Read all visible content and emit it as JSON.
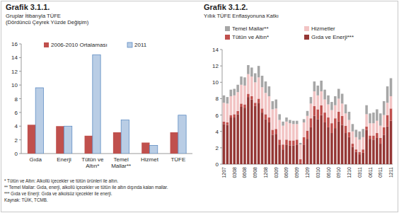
{
  "chart_data": [
    {
      "type": "bar",
      "title": "Grafik 3.1.1.",
      "subtitle": [
        "Gruplar İtibarıyla TÜFE",
        "(Dördüncü Çeyrek Yüzde Değişim)"
      ],
      "categories": [
        "Gıda",
        "Enerji",
        "Tütün ve Altın*",
        "Temel Mallar**",
        "Hizmet",
        "TÜFE"
      ],
      "series": [
        {
          "name": "2006-2010 Ortalaması",
          "color": "#c0504d",
          "values": [
            4.2,
            4.0,
            2.6,
            3.1,
            1.6,
            3.1
          ]
        },
        {
          "name": "2011",
          "color": "#b9cde5",
          "values": [
            9.6,
            4.0,
            14.4,
            4.9,
            1.2,
            5.6
          ]
        }
      ],
      "ylim": [
        0,
        16
      ],
      "yticks": [
        0,
        2,
        4,
        6,
        8,
        10,
        12,
        14,
        16
      ],
      "grid": false,
      "legend": "top",
      "stacked": false
    },
    {
      "type": "bar",
      "title": "Grafik 3.1.2.",
      "subtitle": [
        "Yıllık TÜFE Enflasyonuna Katkı"
      ],
      "categories": [
        "1207",
        null,
        null,
        "0308",
        null,
        null,
        "0608",
        null,
        null,
        "0908",
        null,
        null,
        "1208",
        null,
        null,
        "0309",
        null,
        null,
        "0609",
        null,
        null,
        "0909",
        null,
        null,
        "1209",
        null,
        null,
        "0310",
        null,
        null,
        "0610",
        null,
        null,
        "0910",
        null,
        null,
        "1210",
        null,
        null,
        "0311",
        null,
        null,
        "0611",
        null,
        null,
        "0911",
        null,
        null,
        "1211"
      ],
      "series": [
        {
          "name": "Gıda ve Enerji***",
          "color": "#953735",
          "values": [
            4.9,
            4.8,
            5.7,
            5.7,
            6.1,
            7.0,
            6.9,
            8.2,
            7.9,
            7.1,
            7.5,
            6.3,
            5.5,
            5.1,
            3.6,
            3.7,
            2.4,
            1.8,
            2.4,
            2.3,
            2.3,
            2.4,
            0.1,
            2.4,
            3.1,
            4.5,
            5.9,
            5.5,
            6.0,
            5.1,
            4.5,
            3.8,
            4.4,
            5.2,
            4.8,
            3.8,
            3.3,
            2.1,
            1.5,
            1.2,
            1.4,
            4.2,
            3.1,
            3.0,
            3.2,
            2.5,
            3.6,
            4.6,
            5.3
          ]
        },
        {
          "name": "Tütün ve Altın*",
          "color": "#c0504d",
          "values": [
            0.3,
            0.3,
            0.3,
            0.4,
            0.4,
            0.4,
            0.4,
            0.4,
            0.4,
            0.4,
            0.5,
            0.5,
            0.6,
            0.6,
            0.6,
            0.6,
            0.6,
            0.6,
            0.6,
            0.6,
            0.6,
            0.6,
            0.5,
            0.9,
            1.0,
            1.1,
            1.2,
            1.2,
            1.2,
            1.2,
            1.2,
            1.2,
            1.2,
            1.2,
            1.1,
            0.9,
            0.6,
            0.4,
            0.3,
            0.3,
            0.4,
            0.4,
            0.4,
            0.5,
            0.6,
            0.7,
            0.9,
            1.4,
            1.5
          ]
        },
        {
          "name": "Hizmetler",
          "color": "#f2c4c4",
          "values": [
            2.3,
            2.3,
            2.3,
            2.3,
            2.3,
            2.3,
            2.3,
            2.4,
            2.4,
            2.5,
            2.6,
            2.6,
            2.6,
            2.6,
            2.5,
            2.5,
            2.4,
            2.3,
            2.2,
            2.1,
            2.0,
            1.9,
            1.8,
            1.8,
            1.8,
            1.8,
            1.8,
            1.7,
            1.7,
            1.6,
            1.6,
            1.6,
            1.6,
            1.6,
            1.5,
            1.5,
            1.5,
            1.5,
            1.5,
            1.5,
            1.5,
            1.5,
            1.5,
            1.5,
            1.5,
            1.5,
            1.5,
            1.5,
            1.5
          ]
        },
        {
          "name": "Temel Mallar**",
          "color": "#a6a6a6",
          "values": [
            0.9,
            0.8,
            0.8,
            0.8,
            0.9,
            1.0,
            1.0,
            1.1,
            1.1,
            1.1,
            1.4,
            1.4,
            1.4,
            1.2,
            1.0,
            1.1,
            0.7,
            0.5,
            0.5,
            0.4,
            0.4,
            0.4,
            0.2,
            0.4,
            0.6,
            0.8,
            1.2,
            1.2,
            1.3,
            1.2,
            1.1,
            1.0,
            1.1,
            1.2,
            1.2,
            1.1,
            1.0,
            0.9,
            0.9,
            1.0,
            1.0,
            1.1,
            1.2,
            1.3,
            1.4,
            1.5,
            1.7,
            2.0,
            2.2
          ]
        }
      ],
      "ylim": [
        0,
        14
      ],
      "yticks": [
        0,
        2,
        4,
        6,
        8,
        10,
        12,
        14
      ],
      "grid": false,
      "legend": "top",
      "stacked": true
    }
  ],
  "footnotes": [
    "* Tütün ve Altın: Alkollü içecekler ve tütün ürünleri ile altın.",
    "** Temel Mallar: Gıda, enerji, alkollü içecekler ve tütün ile altın dışında kalan mallar.",
    "*** Gıda ve Enerji: Gıda ve alkolsüz içecekler ile enerji.",
    "Kaynak: TÜİK, TCMB."
  ]
}
